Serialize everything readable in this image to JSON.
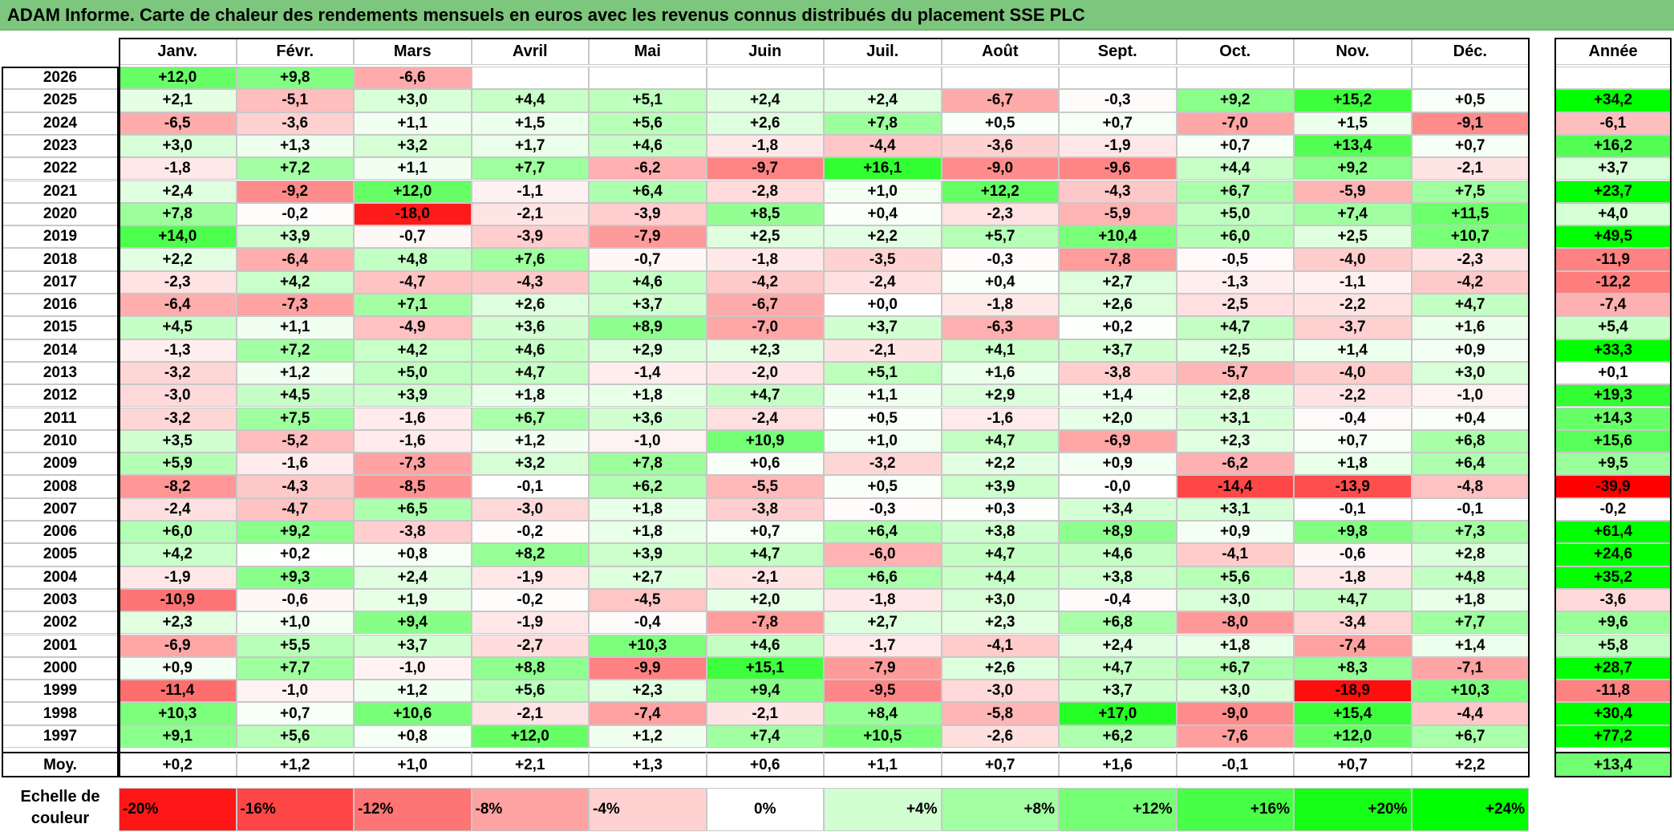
{
  "title": "ADAM Informe. Carte de chaleur des rendements mensuels en euros avec les revenus connus distribués du placement SSE PLC",
  "chart_data": {
    "type": "heatmap",
    "title": "ADAM Informe. Carte de chaleur des rendements mensuels en euros avec les revenus connus distribués du placement SSE PLC",
    "columns": [
      "Janv.",
      "Févr.",
      "Mars",
      "Avril",
      "Mai",
      "Juin",
      "Juil.",
      "Août",
      "Sept.",
      "Oct.",
      "Nov.",
      "Déc."
    ],
    "year_column": "Année",
    "rows": [
      {
        "year": "2026",
        "values": [
          "+12,0",
          "+9,8",
          "-6,6",
          "",
          "",
          "",
          "",
          "",
          "",
          "",
          "",
          ""
        ],
        "annual": ""
      },
      {
        "year": "2025",
        "values": [
          "+2,1",
          "-5,1",
          "+3,0",
          "+4,4",
          "+5,1",
          "+2,4",
          "+2,4",
          "-6,7",
          "-0,3",
          "+9,2",
          "+15,2",
          "+0,5"
        ],
        "annual": "+34,2"
      },
      {
        "year": "2024",
        "values": [
          "-6,5",
          "-3,6",
          "+1,1",
          "+1,5",
          "+5,6",
          "+2,6",
          "+7,8",
          "+0,5",
          "+0,7",
          "-7,0",
          "+1,5",
          "-9,1"
        ],
        "annual": "-6,1"
      },
      {
        "year": "2023",
        "values": [
          "+3,0",
          "+1,3",
          "+3,2",
          "+1,7",
          "+4,6",
          "-1,8",
          "-4,4",
          "-3,6",
          "-1,9",
          "+0,7",
          "+13,4",
          "+0,7"
        ],
        "annual": "+16,2"
      },
      {
        "year": "2022",
        "values": [
          "-1,8",
          "+7,2",
          "+1,1",
          "+7,7",
          "-6,2",
          "-9,7",
          "+16,1",
          "-9,0",
          "-9,6",
          "+4,4",
          "+9,2",
          "-2,1"
        ],
        "annual": "+3,7"
      },
      {
        "year": "2021",
        "values": [
          "+2,4",
          "-9,2",
          "+12,0",
          "-1,1",
          "+6,4",
          "-2,8",
          "+1,0",
          "+12,2",
          "-4,3",
          "+6,7",
          "-5,9",
          "+7,5"
        ],
        "annual": "+23,7"
      },
      {
        "year": "2020",
        "values": [
          "+7,8",
          "-0,2",
          "-18,0",
          "-2,1",
          "-3,9",
          "+8,5",
          "+0,4",
          "-2,3",
          "-5,9",
          "+5,0",
          "+7,4",
          "+11,5"
        ],
        "annual": "+4,0"
      },
      {
        "year": "2019",
        "values": [
          "+14,0",
          "+3,9",
          "-0,7",
          "-3,9",
          "-7,9",
          "+2,5",
          "+2,2",
          "+5,7",
          "+10,4",
          "+6,0",
          "+2,5",
          "+10,7"
        ],
        "annual": "+49,5"
      },
      {
        "year": "2018",
        "values": [
          "+2,2",
          "-6,4",
          "+4,8",
          "+7,6",
          "-0,7",
          "-1,8",
          "-3,5",
          "-0,3",
          "-7,8",
          "-0,5",
          "-4,0",
          "-2,3"
        ],
        "annual": "-11,9"
      },
      {
        "year": "2017",
        "values": [
          "-2,3",
          "+4,2",
          "-4,7",
          "-4,3",
          "+4,6",
          "-4,2",
          "-2,4",
          "+0,4",
          "+2,7",
          "-1,3",
          "-1,1",
          "-4,2"
        ],
        "annual": "-12,2"
      },
      {
        "year": "2016",
        "values": [
          "-6,4",
          "-7,3",
          "+7,1",
          "+2,6",
          "+3,7",
          "-6,7",
          "+0,0",
          "-1,8",
          "+2,6",
          "-2,5",
          "-2,2",
          "+4,7"
        ],
        "annual": "-7,4"
      },
      {
        "year": "2015",
        "values": [
          "+4,5",
          "+1,1",
          "-4,9",
          "+3,6",
          "+8,9",
          "-7,0",
          "+3,7",
          "-6,3",
          "+0,2",
          "+4,7",
          "-3,7",
          "+1,6"
        ],
        "annual": "+5,4"
      },
      {
        "year": "2014",
        "values": [
          "-1,3",
          "+7,2",
          "+4,2",
          "+4,6",
          "+2,9",
          "+2,3",
          "-2,1",
          "+4,1",
          "+3,7",
          "+2,5",
          "+1,4",
          "+0,9"
        ],
        "annual": "+33,3"
      },
      {
        "year": "2013",
        "values": [
          "-3,2",
          "+1,2",
          "+5,0",
          "+4,7",
          "-1,4",
          "-2,0",
          "+5,1",
          "+1,6",
          "-3,8",
          "-5,7",
          "-4,0",
          "+3,0"
        ],
        "annual": "+0,1"
      },
      {
        "year": "2012",
        "values": [
          "-3,0",
          "+4,5",
          "+3,9",
          "+1,8",
          "+1,8",
          "+4,7",
          "+1,1",
          "+2,9",
          "+1,4",
          "+2,8",
          "-2,2",
          "-1,0"
        ],
        "annual": "+19,3"
      },
      {
        "year": "2011",
        "values": [
          "-3,2",
          "+7,5",
          "-1,6",
          "+6,7",
          "+3,6",
          "-2,4",
          "+0,5",
          "-1,6",
          "+2,0",
          "+3,1",
          "-0,4",
          "+0,4"
        ],
        "annual": "+14,3"
      },
      {
        "year": "2010",
        "values": [
          "+3,5",
          "-5,2",
          "-1,6",
          "+1,2",
          "-1,0",
          "+10,9",
          "+1,0",
          "+4,7",
          "-6,9",
          "+2,3",
          "+0,7",
          "+6,8"
        ],
        "annual": "+15,6"
      },
      {
        "year": "2009",
        "values": [
          "+5,9",
          "-1,6",
          "-7,3",
          "+3,2",
          "+7,8",
          "+0,6",
          "-3,2",
          "+2,2",
          "+0,9",
          "-6,2",
          "+1,8",
          "+6,4"
        ],
        "annual": "+9,5"
      },
      {
        "year": "2008",
        "values": [
          "-8,2",
          "-4,3",
          "-8,5",
          "-0,1",
          "+6,2",
          "-5,5",
          "+0,5",
          "+3,9",
          "-0,0",
          "-14,4",
          "-13,9",
          "-4,8"
        ],
        "annual": "-39,9"
      },
      {
        "year": "2007",
        "values": [
          "-2,4",
          "-4,7",
          "+6,5",
          "-3,0",
          "+1,8",
          "-3,8",
          "-0,3",
          "+0,3",
          "+3,4",
          "+3,1",
          "-0,1",
          "-0,1"
        ],
        "annual": "-0,2"
      },
      {
        "year": "2006",
        "values": [
          "+6,0",
          "+9,2",
          "-3,8",
          "-0,2",
          "+1,8",
          "+0,7",
          "+6,4",
          "+3,8",
          "+8,9",
          "+0,9",
          "+9,8",
          "+7,3"
        ],
        "annual": "+61,4"
      },
      {
        "year": "2005",
        "values": [
          "+4,2",
          "+0,2",
          "+0,8",
          "+8,2",
          "+3,9",
          "+4,7",
          "-6,0",
          "+4,7",
          "+4,6",
          "-4,1",
          "-0,6",
          "+2,8"
        ],
        "annual": "+24,6"
      },
      {
        "year": "2004",
        "values": [
          "-1,9",
          "+9,3",
          "+2,4",
          "-1,9",
          "+2,7",
          "-2,1",
          "+6,6",
          "+4,4",
          "+3,8",
          "+5,6",
          "-1,8",
          "+4,8"
        ],
        "annual": "+35,2"
      },
      {
        "year": "2003",
        "values": [
          "-10,9",
          "-0,6",
          "+1,9",
          "-0,2",
          "-4,5",
          "+2,0",
          "-1,8",
          "+3,0",
          "-0,4",
          "+3,0",
          "+4,7",
          "+1,8"
        ],
        "annual": "-3,6"
      },
      {
        "year": "2002",
        "values": [
          "+2,3",
          "+1,0",
          "+9,4",
          "-1,9",
          "-0,4",
          "-7,8",
          "+2,7",
          "+2,3",
          "+6,8",
          "-8,0",
          "-3,4",
          "+7,7"
        ],
        "annual": "+9,6"
      },
      {
        "year": "2001",
        "values": [
          "-6,9",
          "+5,5",
          "+3,7",
          "-2,7",
          "+10,3",
          "+4,6",
          "-1,7",
          "-4,1",
          "+2,4",
          "+1,8",
          "-7,4",
          "+1,4"
        ],
        "annual": "+5,8"
      },
      {
        "year": "2000",
        "values": [
          "+0,9",
          "+7,7",
          "-1,0",
          "+8,8",
          "-9,9",
          "+15,1",
          "-7,9",
          "+2,6",
          "+4,7",
          "+6,7",
          "+8,3",
          "-7,1"
        ],
        "annual": "+28,7"
      },
      {
        "year": "1999",
        "values": [
          "-11,4",
          "-1,0",
          "+1,2",
          "+5,6",
          "+2,3",
          "+9,4",
          "-9,5",
          "-3,0",
          "+3,7",
          "+3,0",
          "-18,9",
          "+10,3"
        ],
        "annual": "-11,8"
      },
      {
        "year": "1998",
        "values": [
          "+10,3",
          "+0,7",
          "+10,6",
          "-2,1",
          "-7,4",
          "-2,1",
          "+8,4",
          "-5,8",
          "+17,0",
          "-9,0",
          "+15,4",
          "-4,4"
        ],
        "annual": "+30,4"
      },
      {
        "year": "1997",
        "values": [
          "+9,1",
          "+5,6",
          "+0,8",
          "+12,0",
          "+1,2",
          "+7,4",
          "+10,5",
          "-2,6",
          "+6,2",
          "-7,6",
          "+12,0",
          "+6,7"
        ],
        "annual": "+77,2"
      }
    ],
    "average": {
      "label": "Moy.",
      "values": [
        "+0,2",
        "+1,2",
        "+1,0",
        "+2,1",
        "+1,3",
        "+0,6",
        "+1,1",
        "+0,7",
        "+1,6",
        "-0,1",
        "+0,7",
        "+2,2"
      ],
      "annual": "+13,4"
    },
    "color_scale": {
      "label": "Echelle de couleur",
      "stops": [
        "-20%",
        "-16%",
        "-12%",
        "-8%",
        "-4%",
        "0%",
        "+4%",
        "+8%",
        "+12%",
        "+16%",
        "+20%",
        "+24%"
      ],
      "stop_values": [
        -20,
        -16,
        -12,
        -8,
        -4,
        0,
        4,
        8,
        12,
        16,
        20,
        24
      ],
      "negative_color": "#ff0000",
      "zero_color": "#ffffff",
      "positive_color": "#00ff00"
    }
  }
}
